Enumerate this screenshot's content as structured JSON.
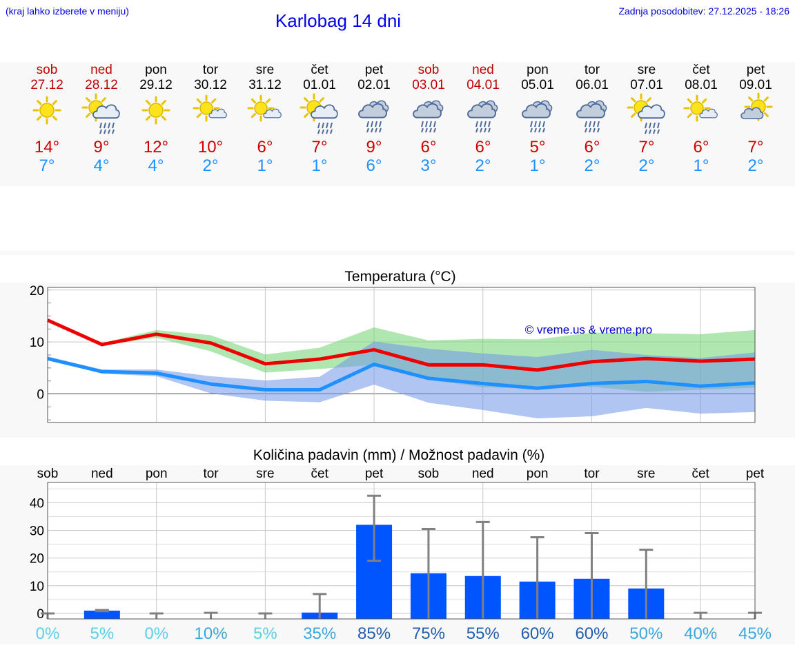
{
  "header": {
    "note": "(kraj lahko izberete v meniju)",
    "title": "Karlobag 14 dni",
    "updated": "Zadnja posodobitev: 27.12.2025 - 18:26"
  },
  "colors": {
    "weekend": "#c00000",
    "weekday": "#000000",
    "max_temp": "#cc0000",
    "min_temp": "#1e90ff"
  },
  "forecast": [
    {
      "day": "sob",
      "date": "27.12",
      "weekend": true,
      "icon": "sun-icon",
      "max": "14°",
      "min": "7°"
    },
    {
      "day": "ned",
      "date": "28.12",
      "weekend": true,
      "icon": "sun-cloud-rain-icon",
      "max": "9°",
      "min": "4°"
    },
    {
      "day": "pon",
      "date": "29.12",
      "weekend": false,
      "icon": "sun-icon",
      "max": "12°",
      "min": "4°"
    },
    {
      "day": "tor",
      "date": "30.12",
      "weekend": false,
      "icon": "sun-small-cloud-icon",
      "max": "10°",
      "min": "2°"
    },
    {
      "day": "sre",
      "date": "31.12",
      "weekend": false,
      "icon": "sun-small-cloud-icon",
      "max": "6°",
      "min": "1°"
    },
    {
      "day": "čet",
      "date": "01.01",
      "weekend": false,
      "icon": "sun-cloud-rain-icon",
      "max": "7°",
      "min": "1°"
    },
    {
      "day": "pet",
      "date": "02.01",
      "weekend": false,
      "icon": "cloud-rain-icon",
      "max": "9°",
      "min": "6°"
    },
    {
      "day": "sob",
      "date": "03.01",
      "weekend": true,
      "icon": "cloud-rain-icon",
      "max": "6°",
      "min": "3°"
    },
    {
      "day": "ned",
      "date": "04.01",
      "weekend": true,
      "icon": "cloud-rain-icon",
      "max": "6°",
      "min": "2°"
    },
    {
      "day": "pon",
      "date": "05.01",
      "weekend": false,
      "icon": "cloud-rain-icon",
      "max": "5°",
      "min": "1°"
    },
    {
      "day": "tor",
      "date": "06.01",
      "weekend": false,
      "icon": "cloud-rain-icon",
      "max": "6°",
      "min": "2°"
    },
    {
      "day": "sre",
      "date": "07.01",
      "weekend": false,
      "icon": "sun-cloud-rain-icon",
      "max": "7°",
      "min": "2°"
    },
    {
      "day": "čet",
      "date": "08.01",
      "weekend": false,
      "icon": "sun-small-cloud-icon",
      "max": "6°",
      "min": "1°"
    },
    {
      "day": "pet",
      "date": "09.01",
      "weekend": false,
      "icon": "sun-cloud-icon",
      "max": "7°",
      "min": "2°"
    }
  ],
  "chart_data": [
    {
      "type": "line",
      "title": "Temperatura (°C)",
      "xlabel": "",
      "ylabel": "",
      "ylim": [
        -5.5,
        20.5
      ],
      "yticks": [
        "20",
        "10",
        "0"
      ],
      "grid": true,
      "watermark": "© vreme.us & vreme.pro",
      "series": [
        {
          "name": "max",
          "color": "#ee0000",
          "values": [
            14.2,
            9.5,
            11.5,
            9.8,
            5.8,
            6.7,
            8.5,
            5.6,
            5.6,
            4.6,
            6.2,
            6.8,
            6.3,
            6.7
          ],
          "band_high": [
            14.2,
            9.8,
            12.3,
            11.3,
            7.6,
            8.9,
            12.8,
            10.3,
            10.6,
            10.5,
            11.8,
            11.7,
            11.5,
            12.3
          ],
          "band_low": [
            14.2,
            9.3,
            10.8,
            8.2,
            4.1,
            4.8,
            5.6,
            2.7,
            1.3,
            1.0,
            1.4,
            0.4,
            0.8,
            1.2
          ]
        },
        {
          "name": "min",
          "color": "#1e90ff",
          "values": [
            6.8,
            4.3,
            4.0,
            1.9,
            0.8,
            0.8,
            5.7,
            3.0,
            2.0,
            1.1,
            2.0,
            2.4,
            1.5,
            2.1
          ],
          "band_high": [
            7.2,
            4.7,
            4.7,
            3.4,
            2.6,
            3.3,
            10.1,
            8.7,
            7.8,
            7.1,
            8.5,
            7.5,
            6.9,
            8.0
          ],
          "band_low": [
            6.6,
            3.9,
            3.4,
            0.1,
            -1.3,
            -1.6,
            1.8,
            -1.7,
            -3.1,
            -4.7,
            -4.3,
            -2.7,
            -3.8,
            -3.5
          ]
        }
      ]
    },
    {
      "type": "bar",
      "title": "Količina padavin (mm) / Možnost padavin (%)",
      "categories": [
        "sob",
        "ned",
        "pon",
        "tor",
        "sre",
        "čet",
        "pet",
        "sob",
        "ned",
        "pon",
        "tor",
        "sre",
        "čet",
        "pet"
      ],
      "ylim": [
        -2,
        47.3
      ],
      "yticks": [
        "40",
        "30",
        "20",
        "10",
        "0"
      ],
      "values": [
        0,
        1,
        0,
        0,
        0,
        0.3,
        32,
        14.5,
        13.5,
        11.5,
        12.5,
        9,
        0,
        0
      ],
      "error_high": [
        0,
        1.2,
        0,
        0.2,
        0,
        7,
        42.5,
        30.5,
        33,
        27.5,
        29,
        23,
        0.2,
        0.2
      ],
      "error_low": [
        0,
        0.8,
        0,
        0,
        0,
        0,
        19,
        0,
        0,
        0,
        0,
        0,
        0,
        0
      ],
      "probabilities": [
        "0%",
        "5%",
        "0%",
        "10%",
        "5%",
        "35%",
        "85%",
        "75%",
        "55%",
        "60%",
        "60%",
        "50%",
        "40%",
        "45%"
      ],
      "prob_colors": [
        "#5bcfe8",
        "#5bcfe8",
        "#5bcfe8",
        "#3aa6dd",
        "#5bcfe8",
        "#3aa6dd",
        "#1f5fb0",
        "#1f5fb0",
        "#1f5fb0",
        "#1f5fb0",
        "#1f5fb0",
        "#3aa6dd",
        "#3aa6dd",
        "#3aa6dd"
      ]
    }
  ]
}
